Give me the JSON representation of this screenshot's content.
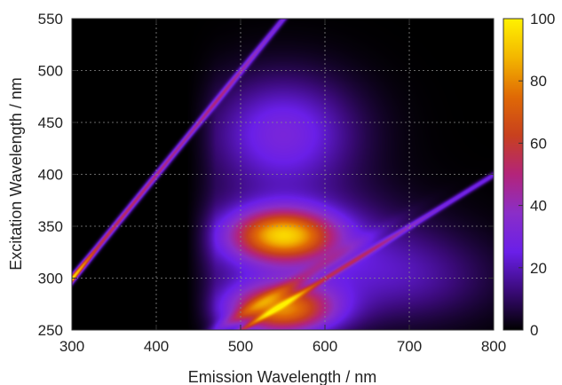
{
  "chart_data": {
    "type": "heatmap",
    "title": "",
    "xlabel": "Emission Wavelength / nm",
    "ylabel": "Excitation Wavelength / nm",
    "xlim": [
      300,
      800
    ],
    "ylim": [
      250,
      550
    ],
    "x_ticks": [
      300,
      400,
      500,
      600,
      700,
      800
    ],
    "y_ticks": [
      250,
      300,
      350,
      400,
      450,
      500,
      550
    ],
    "grid": true,
    "colorbar": {
      "range": [
        0,
        100
      ],
      "ticks": [
        0,
        20,
        40,
        60,
        80,
        100
      ],
      "colors": [
        "#000000",
        "#3a0a78",
        "#6a1fe8",
        "#8a2ec8",
        "#b3247a",
        "#c8401e",
        "#e06a05",
        "#f3b600",
        "#fff200"
      ]
    },
    "features": [
      {
        "name": "Rayleigh scatter line",
        "em_eq_ex": true,
        "peak": 100,
        "peak_excitation": 300
      },
      {
        "name": "second-order scatter line",
        "em_eq_two_ex": true,
        "intensity": 30
      },
      {
        "name": "fluorescence band",
        "excitation": 340,
        "emission": 550,
        "intensity": 72
      },
      {
        "name": "fluorescence band",
        "excitation": 270,
        "emission": 545,
        "intensity": 78
      },
      {
        "name": "diffuse emission",
        "excitation": 440,
        "emission": 550,
        "intensity": 30
      }
    ]
  }
}
